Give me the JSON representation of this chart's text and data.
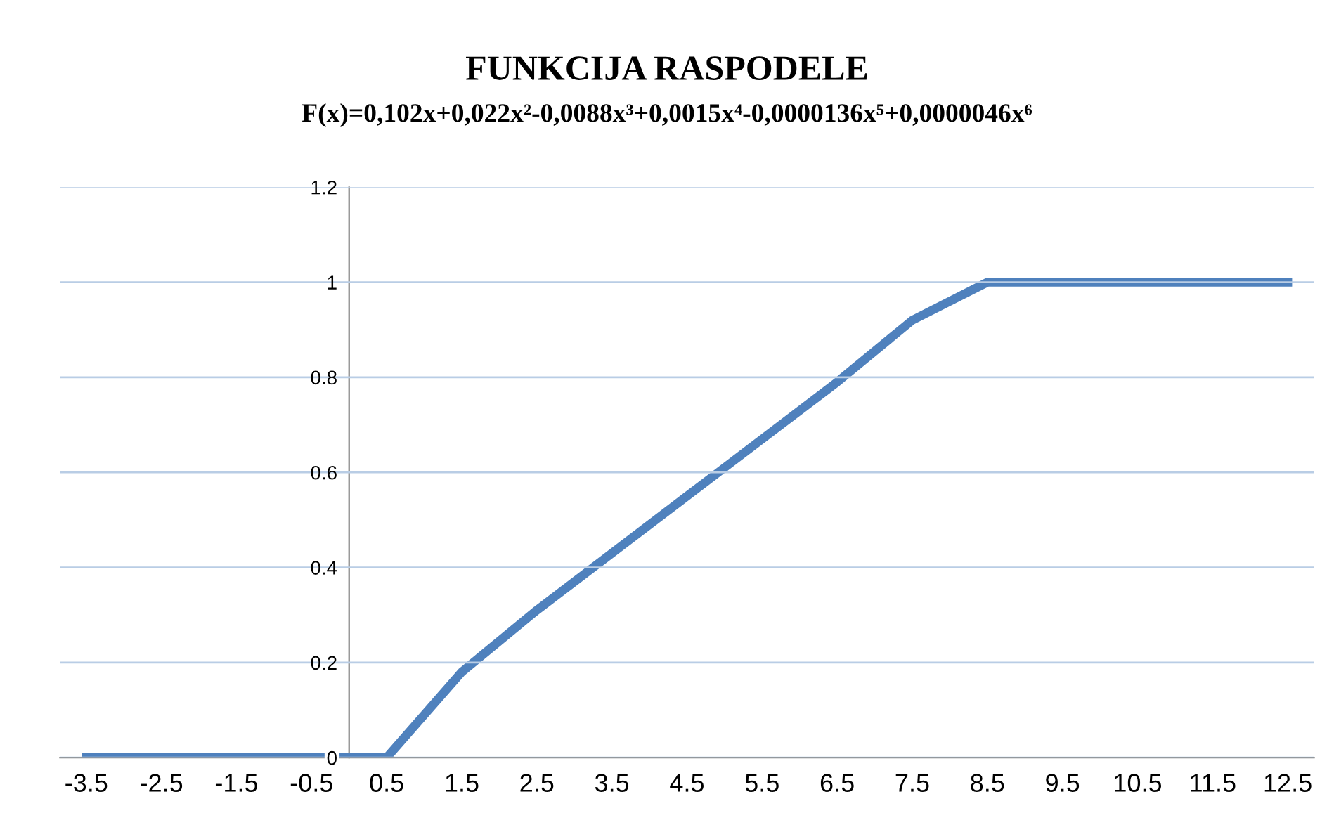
{
  "chart_data": {
    "type": "line",
    "title": "FUNKCIJA RASPODELE",
    "subtitle": "F(x)=0,102x+0,022x²-0,0088x³+0,0015x⁴-0,0000136x⁵+0,0000046x⁶",
    "x": [
      -3.5,
      -2.5,
      -1.5,
      -0.5,
      0.5,
      1.5,
      2.5,
      3.5,
      4.5,
      5.5,
      6.5,
      7.5,
      8.5,
      9.5,
      10.5,
      11.5,
      12.5
    ],
    "series": [
      {
        "color": "#4f81bd",
        "values": [
          0,
          0,
          0,
          0,
          0,
          0.18,
          0.31,
          0.43,
          0.55,
          0.67,
          0.79,
          0.92,
          1,
          1,
          1,
          1,
          1
        ]
      }
    ],
    "xlim": [
      -3.85,
      12.85
    ],
    "xticks": [
      -3.5,
      -2.5,
      -1.5,
      -0.5,
      0.5,
      1.5,
      2.5,
      3.5,
      4.5,
      5.5,
      6.5,
      7.5,
      8.5,
      9.5,
      10.5,
      11.5,
      12.5
    ],
    "ylim": [
      0,
      1.2
    ],
    "yticks": [
      0,
      0.2,
      0.4,
      0.6,
      0.8,
      1,
      1.2
    ],
    "grid": "y",
    "legend": false,
    "marker": "none",
    "line_style": "solid"
  }
}
